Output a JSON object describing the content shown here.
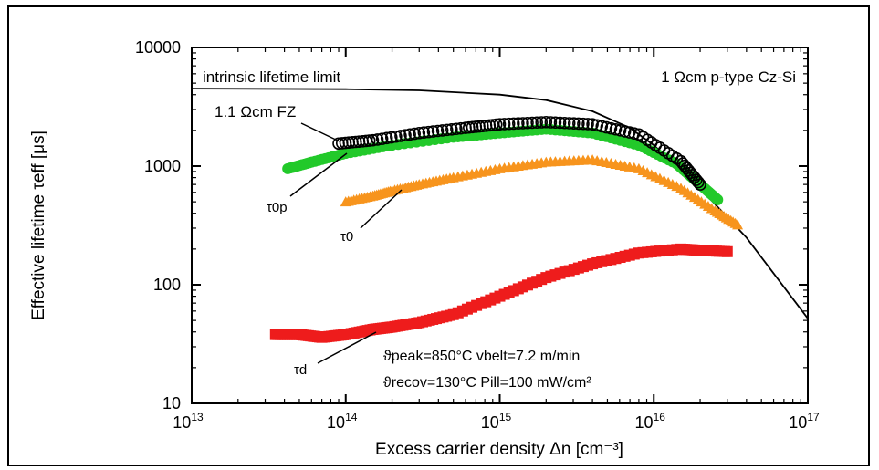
{
  "chart_data": {
    "type": "scatter",
    "xscale": "log",
    "yscale": "log",
    "xlim": [
      10000000000000.0,
      1e+17
    ],
    "ylim": [
      10,
      10000
    ],
    "xlabel": "Excess carrier density Δn [cm⁻³]",
    "ylabel": "Effective lifetime τeff [μs]",
    "x_ticks": [
      {
        "base": "10",
        "exp": "13"
      },
      {
        "base": "10",
        "exp": "14"
      },
      {
        "base": "10",
        "exp": "15"
      },
      {
        "base": "10",
        "exp": "16"
      },
      {
        "base": "10",
        "exp": "17"
      }
    ],
    "y_ticks": [
      "10",
      "100",
      "1000",
      "10000"
    ],
    "annotations": {
      "intrinsic": "intrinsic lifetime limit",
      "material": "1 Ωcm p-type Cz-Si",
      "fz": "1.1 Ωcm FZ",
      "params_line1": "ϑpeak=850°C vbelt=7.2 m/min",
      "params_line2": "ϑrecov=130°C Pill=100 mW/cm²"
    },
    "series": [
      {
        "name": "τ0p",
        "color": "#22c92a",
        "marker": "circle-filled",
        "x": [
          42000000000000.0,
          60000000000000.0,
          100000000000000.0,
          200000000000000.0,
          500000000000000.0,
          1000000000000000.0,
          2000000000000000.0,
          4000000000000000.0,
          8000000000000000.0,
          1.4e+16,
          2e+16,
          2.6e+16
        ],
        "y": [
          950,
          1080,
          1280,
          1500,
          1750,
          1900,
          2050,
          1900,
          1500,
          1050,
          700,
          520
        ]
      },
      {
        "name": "1.1 Ωcm FZ",
        "color": "#000000",
        "marker": "circle-open",
        "x": [
          90000000000000.0,
          150000000000000.0,
          300000000000000.0,
          600000000000000.0,
          1000000000000000.0,
          2000000000000000.0,
          4000000000000000.0,
          8000000000000000.0,
          1.5e+16,
          2e+16
        ],
        "y": [
          1550,
          1650,
          1900,
          2100,
          2250,
          2350,
          2250,
          1850,
          1100,
          700
        ]
      },
      {
        "name": "τ0",
        "color": "#f7941d",
        "marker": "triangle",
        "x": [
          100000000000000.0,
          150000000000000.0,
          200000000000000.0,
          300000000000000.0,
          500000000000000.0,
          1000000000000000.0,
          2000000000000000.0,
          4000000000000000.0,
          8000000000000000.0,
          1.5e+16,
          2.5e+16,
          3.5e+16
        ],
        "y": [
          500,
          560,
          620,
          700,
          800,
          950,
          1080,
          1130,
          950,
          650,
          420,
          320
        ]
      },
      {
        "name": "τd",
        "color": "#ee1c1c",
        "marker": "square",
        "x": [
          35000000000000.0,
          50000000000000.0,
          70000000000000.0,
          100000000000000.0,
          150000000000000.0,
          200000000000000.0,
          300000000000000.0,
          500000000000000.0,
          1000000000000000.0,
          2000000000000000.0,
          4000000000000000.0,
          8000000000000000.0,
          1.5e+16,
          2e+16,
          3e+16
        ],
        "y": [
          38,
          38,
          36,
          38,
          42,
          44,
          48,
          56,
          80,
          115,
          150,
          185,
          200,
          195,
          190
        ]
      }
    ],
    "intrinsic_limit": {
      "x": [
        10000000000000.0,
        100000000000000.0,
        300000000000000.0,
        1000000000000000.0,
        2000000000000000.0,
        4000000000000000.0,
        7000000000000000.0,
        1e+16,
        2e+16,
        4e+16,
        1e+17
      ],
      "y": [
        4500,
        4450,
        4350,
        4000,
        3600,
        2900,
        2100,
        1500,
        650,
        250,
        52
      ]
    }
  }
}
